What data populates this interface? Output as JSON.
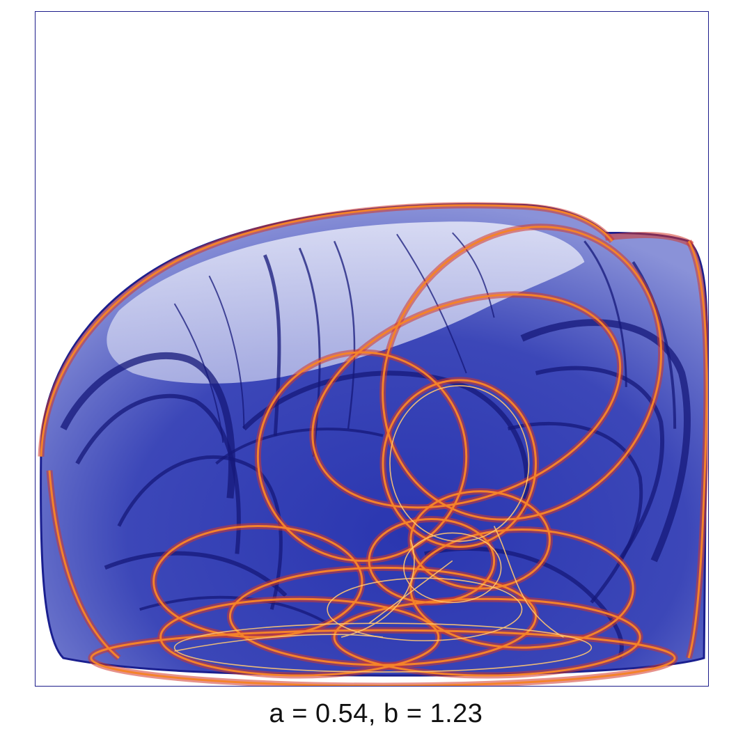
{
  "caption": "a = 0.54, b = 1.23",
  "parameters": {
    "a": 0.54,
    "b": 1.23
  },
  "colors": {
    "frame": "#1c1c8a",
    "deep_blue": "#1f2a9c",
    "navy": "#15187a",
    "pale_blue": "#c9cdee",
    "dark_red": "#7a1030",
    "red": "#d2362c",
    "orange": "#f4832a",
    "light_orange": "#ffc872"
  }
}
